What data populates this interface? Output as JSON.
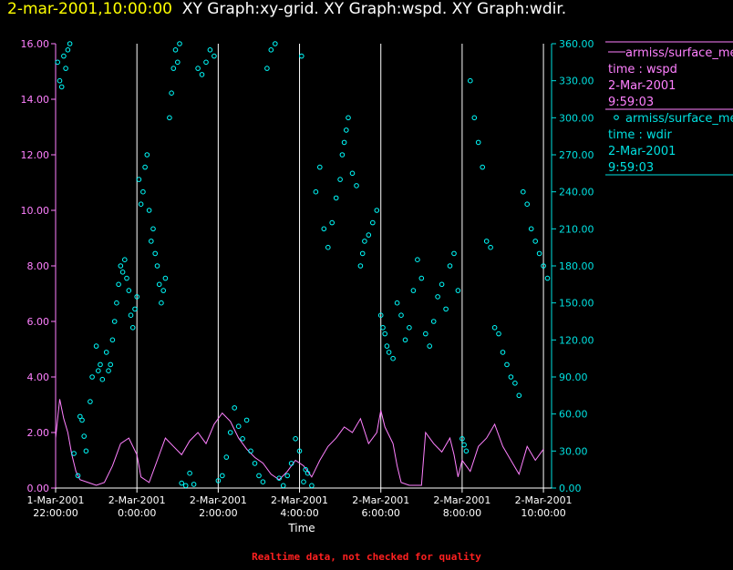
{
  "header": {
    "timestamp": "2-mar-2001,10:00:00",
    "graphs": "XY Graph:xy-grid.  XY Graph:wspd.  XY Graph:wdir."
  },
  "footer": {
    "note": "Realtime data, not checked for quality"
  },
  "colors": {
    "left_axis": "#ff80ff",
    "right_axis": "#00e0e0",
    "wspd": "#ff80ff",
    "wdir": "#00ffff",
    "grid": "#ffffff"
  },
  "chart_data": {
    "type": "scatter",
    "xlabel": "Time",
    "x_unit": "hours from 1-Mar-2001 22:00:00",
    "xlim": [
      0,
      12.2
    ],
    "x_ticks": [
      {
        "x": 0,
        "date": "1-Mar-2001",
        "time": "22:00:00"
      },
      {
        "x": 2,
        "date": "2-Mar-2001",
        "time": "0:00:00"
      },
      {
        "x": 4,
        "date": "2-Mar-2001",
        "time": "2:00:00"
      },
      {
        "x": 6,
        "date": "2-Mar-2001",
        "time": "4:00:00"
      },
      {
        "x": 8,
        "date": "2-Mar-2001",
        "time": "6:00:00"
      },
      {
        "x": 10,
        "date": "2-Mar-2001",
        "time": "8:00:00"
      },
      {
        "x": 12,
        "date": "2-Mar-2001",
        "time": "10:00:00"
      }
    ],
    "vertical_gridlines": [
      2,
      4,
      6,
      8,
      10,
      12
    ],
    "ylim_left": [
      0,
      16
    ],
    "ylim_right": [
      0,
      360
    ],
    "left_ticks": [
      "0.00",
      "2.00",
      "4.00",
      "6.00",
      "8.00",
      "10.00",
      "12.00",
      "14.00",
      "16.00"
    ],
    "right_ticks": [
      "0.00",
      "30.00",
      "60.00",
      "90.00",
      "120.00",
      "150.00",
      "180.00",
      "210.00",
      "240.00",
      "270.00",
      "300.00",
      "330.00",
      "360.00"
    ],
    "series": [
      {
        "name": "wspd",
        "axis": "left",
        "style": "line",
        "legend": {
          "source": "armiss/surface_me",
          "label": "time : wspd",
          "date": "2-Mar-2001",
          "time": "9:59:03"
        },
        "points": [
          [
            0,
            1.8
          ],
          [
            0.1,
            3.2
          ],
          [
            0.2,
            2.5
          ],
          [
            0.3,
            2.0
          ],
          [
            0.4,
            1.2
          ],
          [
            0.5,
            0.6
          ],
          [
            0.6,
            0.3
          ],
          [
            0.8,
            0.2
          ],
          [
            1.0,
            0.1
          ],
          [
            1.2,
            0.2
          ],
          [
            1.4,
            0.8
          ],
          [
            1.6,
            1.6
          ],
          [
            1.8,
            1.8
          ],
          [
            2.0,
            1.2
          ],
          [
            2.1,
            0.4
          ],
          [
            2.3,
            0.2
          ],
          [
            2.5,
            1.0
          ],
          [
            2.7,
            1.8
          ],
          [
            2.9,
            1.5
          ],
          [
            3.1,
            1.2
          ],
          [
            3.3,
            1.7
          ],
          [
            3.5,
            2.0
          ],
          [
            3.7,
            1.6
          ],
          [
            3.9,
            2.3
          ],
          [
            4.1,
            2.7
          ],
          [
            4.3,
            2.4
          ],
          [
            4.5,
            1.8
          ],
          [
            4.7,
            1.4
          ],
          [
            4.9,
            1.1
          ],
          [
            5.1,
            0.9
          ],
          [
            5.3,
            0.5
          ],
          [
            5.5,
            0.3
          ],
          [
            5.7,
            0.6
          ],
          [
            5.9,
            1.0
          ],
          [
            6.1,
            0.8
          ],
          [
            6.3,
            0.4
          ],
          [
            6.5,
            1.0
          ],
          [
            6.7,
            1.5
          ],
          [
            6.9,
            1.8
          ],
          [
            7.1,
            2.2
          ],
          [
            7.3,
            2.0
          ],
          [
            7.5,
            2.5
          ],
          [
            7.7,
            1.6
          ],
          [
            7.9,
            2.0
          ],
          [
            8.0,
            2.8
          ],
          [
            8.1,
            2.2
          ],
          [
            8.3,
            1.6
          ],
          [
            8.4,
            0.8
          ],
          [
            8.5,
            0.2
          ],
          [
            8.7,
            0.1
          ],
          [
            9.0,
            0.1
          ],
          [
            9.1,
            2.0
          ],
          [
            9.3,
            1.6
          ],
          [
            9.5,
            1.3
          ],
          [
            9.7,
            1.8
          ],
          [
            9.8,
            1.2
          ],
          [
            9.9,
            0.4
          ],
          [
            10.0,
            1.0
          ],
          [
            10.2,
            0.6
          ],
          [
            10.4,
            1.5
          ],
          [
            10.6,
            1.8
          ],
          [
            10.8,
            2.3
          ],
          [
            11.0,
            1.5
          ],
          [
            11.2,
            1.0
          ],
          [
            11.4,
            0.5
          ],
          [
            11.6,
            1.5
          ],
          [
            11.8,
            1.0
          ],
          [
            12.0,
            1.4
          ]
        ]
      },
      {
        "name": "wdir",
        "axis": "right",
        "style": "markers",
        "legend": {
          "source": "armiss/surface_me",
          "label": "time : wdir",
          "date": "2-Mar-2001",
          "time": "9:59:03"
        },
        "points": [
          [
            0.05,
            345
          ],
          [
            0.1,
            330
          ],
          [
            0.15,
            325
          ],
          [
            0.2,
            350
          ],
          [
            0.25,
            340
          ],
          [
            0.3,
            355
          ],
          [
            0.35,
            360
          ],
          [
            0.45,
            28
          ],
          [
            0.55,
            10
          ],
          [
            0.6,
            58
          ],
          [
            0.65,
            55
          ],
          [
            0.7,
            42
          ],
          [
            0.75,
            30
          ],
          [
            0.85,
            70
          ],
          [
            0.9,
            90
          ],
          [
            1.0,
            115
          ],
          [
            1.05,
            95
          ],
          [
            1.1,
            100
          ],
          [
            1.15,
            88
          ],
          [
            1.25,
            110
          ],
          [
            1.3,
            95
          ],
          [
            1.35,
            100
          ],
          [
            1.4,
            120
          ],
          [
            1.45,
            135
          ],
          [
            1.5,
            150
          ],
          [
            1.55,
            165
          ],
          [
            1.6,
            180
          ],
          [
            1.65,
            175
          ],
          [
            1.7,
            185
          ],
          [
            1.75,
            170
          ],
          [
            1.8,
            160
          ],
          [
            1.85,
            140
          ],
          [
            1.9,
            130
          ],
          [
            1.95,
            145
          ],
          [
            2.0,
            155
          ],
          [
            2.05,
            250
          ],
          [
            2.1,
            230
          ],
          [
            2.15,
            240
          ],
          [
            2.2,
            260
          ],
          [
            2.25,
            270
          ],
          [
            2.3,
            225
          ],
          [
            2.35,
            200
          ],
          [
            2.4,
            210
          ],
          [
            2.45,
            190
          ],
          [
            2.5,
            180
          ],
          [
            2.55,
            165
          ],
          [
            2.6,
            150
          ],
          [
            2.65,
            160
          ],
          [
            2.7,
            170
          ],
          [
            2.8,
            300
          ],
          [
            2.85,
            320
          ],
          [
            2.9,
            340
          ],
          [
            2.95,
            355
          ],
          [
            3.0,
            345
          ],
          [
            3.05,
            360
          ],
          [
            3.1,
            4
          ],
          [
            3.2,
            2
          ],
          [
            3.3,
            12
          ],
          [
            3.4,
            3
          ],
          [
            3.5,
            340
          ],
          [
            3.6,
            335
          ],
          [
            3.7,
            345
          ],
          [
            3.8,
            355
          ],
          [
            3.9,
            350
          ],
          [
            4.0,
            6
          ],
          [
            4.1,
            10
          ],
          [
            4.2,
            25
          ],
          [
            4.3,
            45
          ],
          [
            4.4,
            65
          ],
          [
            4.5,
            50
          ],
          [
            4.6,
            40
          ],
          [
            4.7,
            55
          ],
          [
            4.8,
            30
          ],
          [
            4.9,
            20
          ],
          [
            5.0,
            10
          ],
          [
            5.1,
            5
          ],
          [
            5.2,
            340
          ],
          [
            5.3,
            355
          ],
          [
            5.4,
            360
          ],
          [
            5.5,
            8
          ],
          [
            5.6,
            2
          ],
          [
            5.7,
            10
          ],
          [
            5.8,
            20
          ],
          [
            5.9,
            40
          ],
          [
            6.0,
            30
          ],
          [
            6.05,
            350
          ],
          [
            6.1,
            5
          ],
          [
            6.15,
            15
          ],
          [
            6.2,
            12
          ],
          [
            6.3,
            2
          ],
          [
            6.4,
            240
          ],
          [
            6.5,
            260
          ],
          [
            6.6,
            210
          ],
          [
            6.7,
            195
          ],
          [
            6.8,
            215
          ],
          [
            6.9,
            235
          ],
          [
            7.0,
            250
          ],
          [
            7.05,
            270
          ],
          [
            7.1,
            280
          ],
          [
            7.15,
            290
          ],
          [
            7.2,
            300
          ],
          [
            7.3,
            255
          ],
          [
            7.4,
            245
          ],
          [
            7.5,
            180
          ],
          [
            7.55,
            190
          ],
          [
            7.6,
            200
          ],
          [
            7.7,
            205
          ],
          [
            7.8,
            215
          ],
          [
            7.9,
            225
          ],
          [
            8.0,
            140
          ],
          [
            8.05,
            130
          ],
          [
            8.1,
            125
          ],
          [
            8.15,
            115
          ],
          [
            8.2,
            110
          ],
          [
            8.3,
            105
          ],
          [
            8.4,
            150
          ],
          [
            8.5,
            140
          ],
          [
            8.6,
            120
          ],
          [
            8.7,
            130
          ],
          [
            8.8,
            160
          ],
          [
            8.9,
            185
          ],
          [
            9.0,
            170
          ],
          [
            9.1,
            125
          ],
          [
            9.2,
            115
          ],
          [
            9.3,
            135
          ],
          [
            9.4,
            155
          ],
          [
            9.5,
            165
          ],
          [
            9.6,
            145
          ],
          [
            9.7,
            180
          ],
          [
            9.8,
            190
          ],
          [
            9.9,
            160
          ],
          [
            10.0,
            40
          ],
          [
            10.05,
            35
          ],
          [
            10.1,
            30
          ],
          [
            10.2,
            330
          ],
          [
            10.3,
            300
          ],
          [
            10.4,
            280
          ],
          [
            10.5,
            260
          ],
          [
            10.6,
            200
          ],
          [
            10.7,
            195
          ],
          [
            10.8,
            130
          ],
          [
            10.9,
            125
          ],
          [
            11.0,
            110
          ],
          [
            11.1,
            100
          ],
          [
            11.2,
            90
          ],
          [
            11.3,
            85
          ],
          [
            11.4,
            75
          ],
          [
            11.5,
            240
          ],
          [
            11.6,
            230
          ],
          [
            11.7,
            210
          ],
          [
            11.8,
            200
          ],
          [
            11.9,
            190
          ],
          [
            12.0,
            180
          ],
          [
            12.1,
            170
          ]
        ]
      }
    ]
  }
}
